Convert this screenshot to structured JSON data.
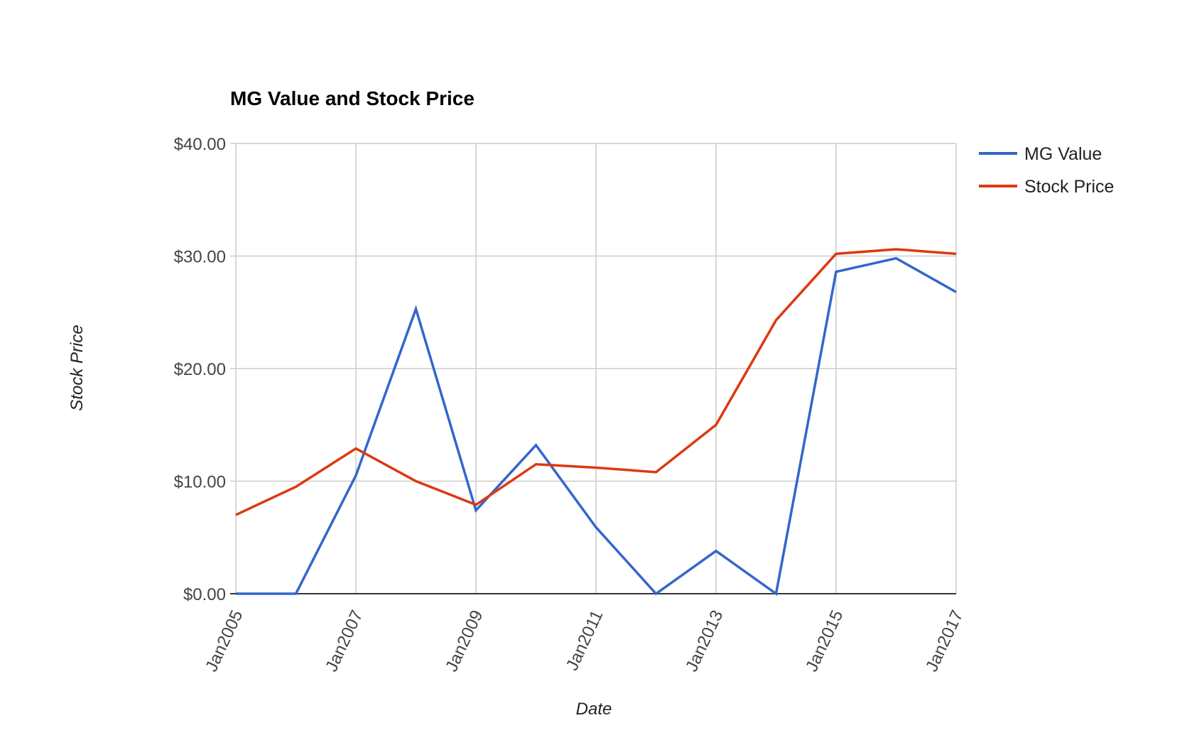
{
  "chart_data": {
    "type": "line",
    "title": "MG Value and Stock Price",
    "xlabel": "Date",
    "ylabel": "Stock Price",
    "x": [
      "2005-01",
      "2006-01",
      "2007-01",
      "2008-01",
      "2009-01",
      "2010-01",
      "2011-01",
      "2012-01",
      "2013-01",
      "2014-01",
      "2015-01",
      "2016-01",
      "2017-01"
    ],
    "x_tick_labels": [
      "Jan2005",
      "Jan2007",
      "Jan2009",
      "Jan2011",
      "Jan2013",
      "Jan2015",
      "Jan2017"
    ],
    "x_tick_dates": [
      "2005-01",
      "2007-01",
      "2009-01",
      "2011-01",
      "2013-01",
      "2015-01",
      "2017-01"
    ],
    "y_tick_labels": [
      "$0.00",
      "$10.00",
      "$20.00",
      "$30.00",
      "$40.00"
    ],
    "y_tick_values": [
      0,
      10,
      20,
      30,
      40
    ],
    "ylim": [
      0,
      40
    ],
    "grid": true,
    "legend_position": "right",
    "series": [
      {
        "name": "MG Value",
        "color": "#3366cc",
        "values": [
          0,
          0,
          10.5,
          25.3,
          7.4,
          13.2,
          5.9,
          0,
          3.8,
          0,
          28.6,
          29.8,
          26.8
        ]
      },
      {
        "name": "Stock Price",
        "color": "#dc3912",
        "values": [
          7.0,
          9.5,
          12.9,
          10.0,
          7.9,
          11.5,
          11.2,
          10.8,
          15.0,
          24.3,
          30.2,
          30.6,
          30.2
        ]
      }
    ]
  }
}
